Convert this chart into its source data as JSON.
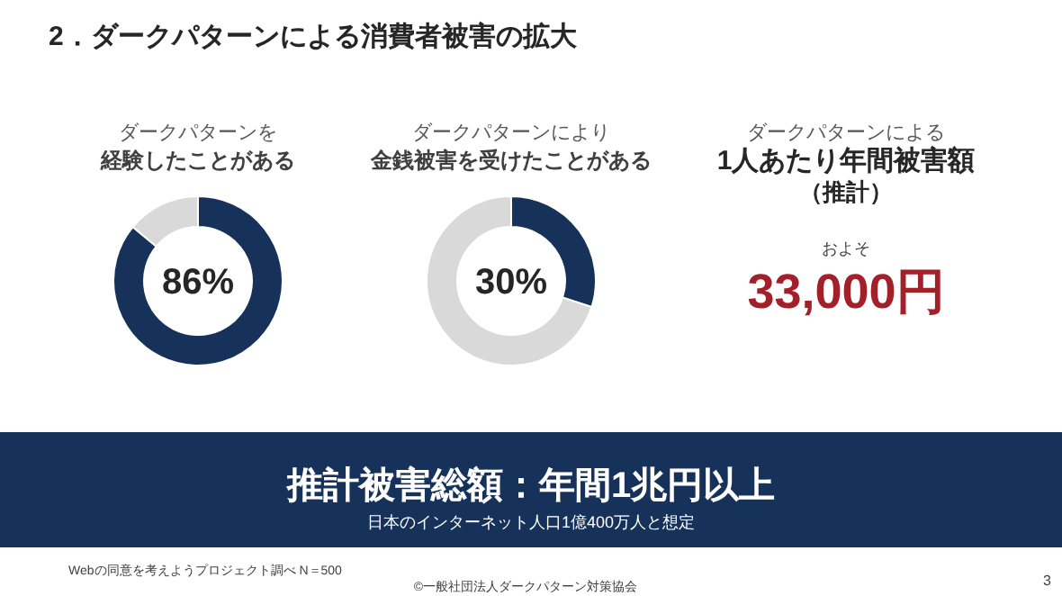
{
  "chart_data": [
    {
      "type": "other",
      "title": "2．ダークパターンによる消費者被害の拡大",
      "annotations": [
        "Webの同意を考えようプロジェクト調べ N＝500",
        "©一般社団法人ダークパターン対策協会",
        "3"
      ]
    },
    {
      "type": "donut",
      "title": "ダークパターンを",
      "subtitle": "経験したことがある",
      "categories": [
        null,
        null
      ],
      "values": [
        86,
        14
      ],
      "colors": [
        "#17325a",
        "#d9d9d9"
      ],
      "annotations": [
        "86%"
      ]
    },
    {
      "type": "donut",
      "title": "ダークパターンにより",
      "subtitle": "金銭被害を受けたことがある",
      "categories": [
        null,
        null
      ],
      "values": [
        30,
        70
      ],
      "colors": [
        "#17325a",
        "#d9d9d9"
      ],
      "annotations": [
        "30%"
      ]
    },
    {
      "type": "other",
      "title": "ダークパターンによる",
      "subtitle": "1人あたり年間被害額",
      "annotations": [
        "（推計）",
        "およそ",
        "33,000円"
      ]
    },
    {
      "type": "other",
      "title": "推計被害総額：年間1兆円以上",
      "subtitle": "日本のインターネット人口1億400万人と想定"
    }
  ]
}
